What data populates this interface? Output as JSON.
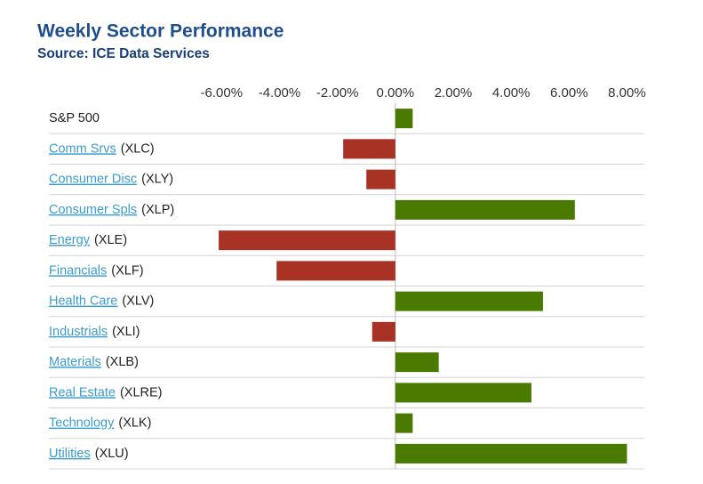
{
  "chart_data": {
    "type": "hbar",
    "title": "Weekly Sector Performance",
    "subtitle": "Source: ICE Data Services",
    "categories": [
      "S&P 500",
      "Comm Srvs",
      "Consumer Disc",
      "Consumer Spls",
      "Energy",
      "Financials",
      "Health Care",
      "Industrials",
      "Materials",
      "Real Estate",
      "Technology",
      "Utilities"
    ],
    "tickers": [
      null,
      "(XLC)",
      "(XLY)",
      "(XLP)",
      "(XLE)",
      "(XLF)",
      "(XLV)",
      "(XLI)",
      "(XLB)",
      "(XLRE)",
      "(XLK)",
      "(XLU)"
    ],
    "values": [
      0.6,
      -1.8,
      -1.0,
      6.2,
      -6.1,
      -4.1,
      5.1,
      -0.8,
      1.5,
      4.7,
      0.6,
      8.0
    ],
    "positive_color": "#4a7a00",
    "negative_color": "#a83224",
    "xlim": [
      -6.9,
      8.6
    ],
    "xticks": [
      {
        "value": -6,
        "label": "-6.00%"
      },
      {
        "value": -4,
        "label": "-4.00%"
      },
      {
        "value": -2,
        "label": "-2.00%"
      },
      {
        "value": 0,
        "label": "0.00%"
      },
      {
        "value": 2,
        "label": "2.00%"
      },
      {
        "value": 4,
        "label": "4.00%"
      },
      {
        "value": 6,
        "label": "6.00%"
      },
      {
        "value": 8,
        "label": "8.00%"
      }
    ]
  }
}
